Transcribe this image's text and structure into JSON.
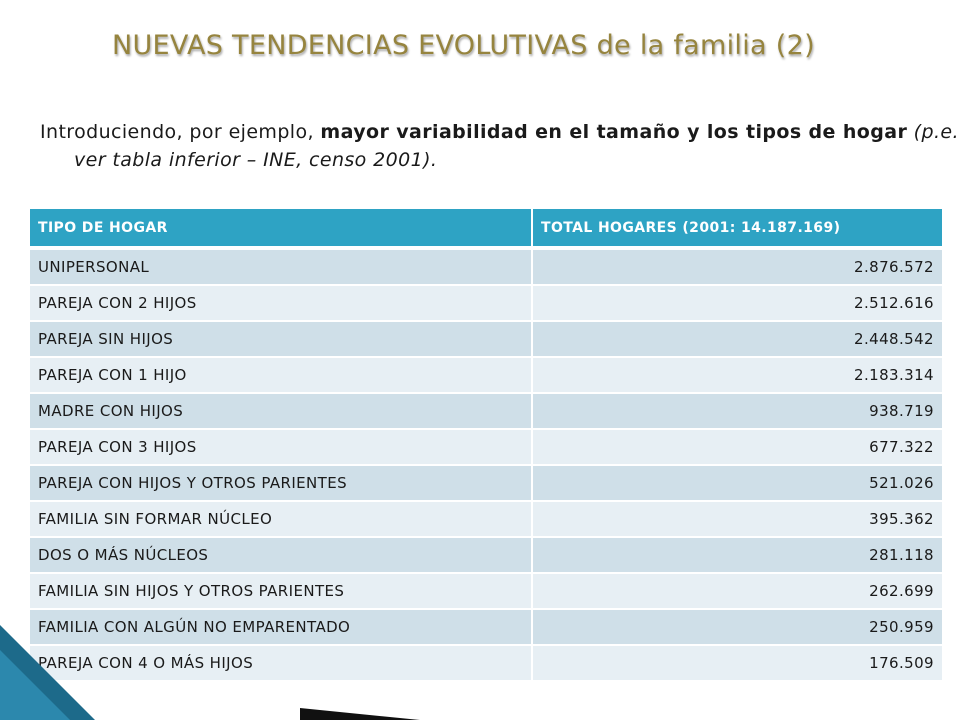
{
  "slide": {
    "title": "NUEVAS TENDENCIAS EVOLUTIVAS de la familia (2)",
    "intro": {
      "part1": "Introduciendo, por ejemplo, ",
      "bold": "mayor variabilidad en el tamaño y los tipos de hogar",
      "italic": " (p.e. ver tabla inferior – INE, censo 2001)."
    }
  },
  "table": {
    "headers": [
      "TIPO DE HOGAR",
      "TOTAL HOGARES (2001: 14.187.169)"
    ],
    "rows": [
      {
        "type": "UNIPERSONAL",
        "total": "2.876.572"
      },
      {
        "type": "PAREJA CON 2 HIJOS",
        "total": "2.512.616"
      },
      {
        "type": "PAREJA SIN HIJOS",
        "total": "2.448.542"
      },
      {
        "type": "PAREJA CON 1 HIJO",
        "total": "2.183.314"
      },
      {
        "type": "MADRE CON HIJOS",
        "total": "938.719"
      },
      {
        "type": "PAREJA CON 3 HIJOS",
        "total": "677.322"
      },
      {
        "type": "PAREJA CON HIJOS Y OTROS PARIENTES",
        "total": "521.026"
      },
      {
        "type": "FAMILIA SIN FORMAR NÚCLEO",
        "total": "395.362"
      },
      {
        "type": "DOS O MÁS NÚCLEOS",
        "total": "281.118"
      },
      {
        "type": "FAMILIA SIN HIJOS Y OTROS PARIENTES",
        "total": "262.699"
      },
      {
        "type": "FAMILIA CON ALGÚN NO EMPARENTADO",
        "total": "250.959"
      },
      {
        "type": "PAREJA CON 4 O MÁS HIJOS",
        "total": "176.509"
      }
    ]
  },
  "colors": {
    "title": "#96843e",
    "header_bg": "#2ea3c4",
    "row_odd": "#cfdfe8",
    "row_even": "#e7eff4",
    "corner_blue": "#1d6a8a",
    "corner_dark": "#111111"
  }
}
